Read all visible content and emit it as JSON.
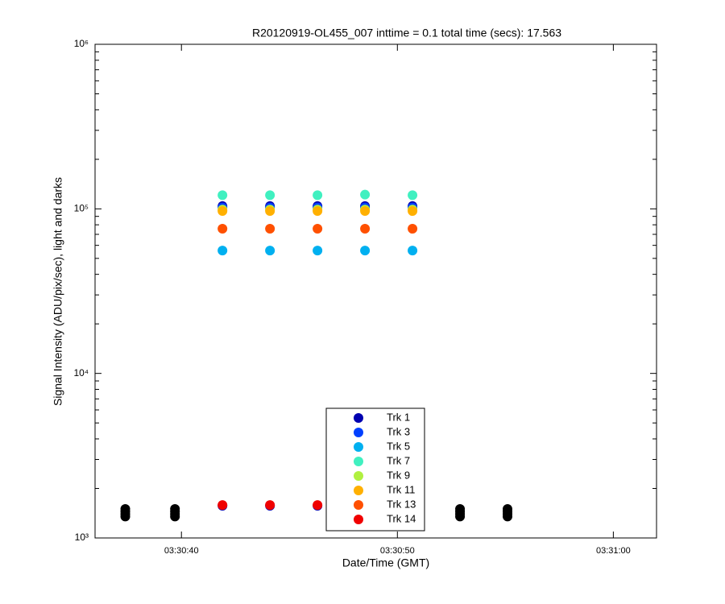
{
  "chart_data": {
    "type": "scatter",
    "title": "R20120919-OL455_007 inttime = 0.1 total time (secs): 17.563",
    "x_label": "Date/Time (GMT)",
    "y_label": "Signal Intensity (ADU/pix/sec), light and darks",
    "log_y": true,
    "xlim": [
      "03:30:36",
      "03:31:02"
    ],
    "xticks": [
      "03:30:40",
      "03:30:50",
      "03:31:00"
    ],
    "ylim": [
      1000,
      1000000
    ],
    "yticks": [
      {
        "value": 1000,
        "label": "10³"
      },
      {
        "value": 10000,
        "label": "10⁴"
      },
      {
        "value": 100000,
        "label": "10⁵"
      },
      {
        "value": 1000000,
        "label": "10⁶"
      }
    ],
    "series": [
      {
        "color": "#000000",
        "x": [
          "03:30:37.4",
          "03:30:37.4",
          "03:30:37.4",
          "03:30:37.4",
          "03:30:39.7",
          "03:30:39.7",
          "03:30:39.7",
          "03:30:39.7",
          "03:30:52.9",
          "03:30:52.9",
          "03:30:52.9",
          "03:30:52.9",
          "03:30:55.1",
          "03:30:55.1",
          "03:30:55.1",
          "03:30:55.1"
        ],
        "values": [
          1350,
          1400,
          1450,
          1500,
          1350,
          1400,
          1450,
          1500,
          1350,
          1400,
          1450,
          1500,
          1350,
          1400,
          1450,
          1500
        ]
      },
      {
        "name": "Trk 1",
        "color": "#0000b0",
        "x": [
          "03:30:41.9",
          "03:30:44.1",
          "03:30:46.3",
          "03:30:48.5",
          "03:30:50.7",
          "03:30:41.9",
          "03:30:44.1",
          "03:30:46.3"
        ],
        "values": [
          104000,
          104000,
          104000,
          104000,
          104000,
          1570,
          1570,
          1570
        ]
      },
      {
        "name": "Trk 3",
        "color": "#0040ff",
        "x": [
          "03:30:41.9",
          "03:30:44.1",
          "03:30:46.3",
          "03:30:48.5",
          "03:30:50.7"
        ],
        "values": [
          102000,
          102000,
          102000,
          102000,
          102000
        ]
      },
      {
        "name": "Trk 5",
        "color": "#00b0f0",
        "x": [
          "03:30:41.9",
          "03:30:44.1",
          "03:30:46.3",
          "03:30:48.5",
          "03:30:50.7"
        ],
        "values": [
          55800,
          55800,
          55800,
          55800,
          55800
        ]
      },
      {
        "name": "Trk 7",
        "color": "#40f0c0",
        "x": [
          "03:30:41.9",
          "03:30:44.1",
          "03:30:46.3",
          "03:30:48.5",
          "03:30:50.7"
        ],
        "values": [
          121000,
          121000,
          121000,
          122000,
          121000
        ]
      },
      {
        "name": "Trk 9",
        "color": "#b0f040",
        "x": [
          "03:30:41.9",
          "03:30:44.1",
          "03:30:46.3",
          "03:30:48.5",
          "03:30:50.7"
        ],
        "values": [
          99000,
          99000,
          99000,
          99000,
          99000
        ]
      },
      {
        "name": "Trk 11",
        "color": "#ffb000",
        "x": [
          "03:30:41.9",
          "03:30:44.1",
          "03:30:46.3",
          "03:30:48.5",
          "03:30:50.7"
        ],
        "values": [
          97000,
          97000,
          97000,
          97000,
          97000
        ]
      },
      {
        "name": "Trk 13",
        "color": "#ff5000",
        "x": [
          "03:30:41.9",
          "03:30:44.1",
          "03:30:46.3",
          "03:30:48.5",
          "03:30:50.7"
        ],
        "values": [
          75700,
          75700,
          75700,
          75700,
          75700
        ]
      },
      {
        "name": "Trk 14",
        "color": "#f00000",
        "x": [
          "03:30:41.9",
          "03:30:44.1",
          "03:30:46.3"
        ],
        "values": [
          1585,
          1585,
          1585
        ]
      }
    ]
  }
}
